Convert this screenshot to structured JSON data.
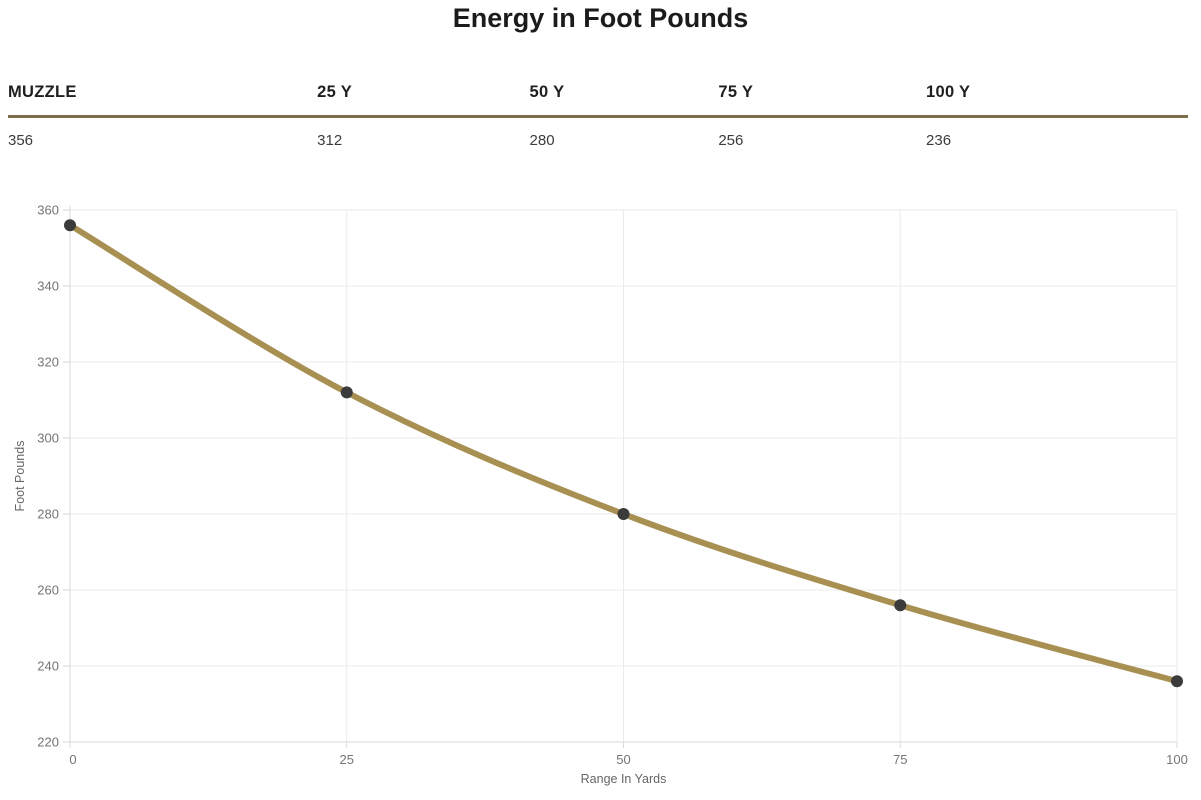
{
  "page": {
    "title": "Energy in Foot Pounds"
  },
  "table": {
    "headers": [
      "MUZZLE",
      "25 Y",
      "50 Y",
      "75 Y",
      "100 Y"
    ],
    "values": [
      "356",
      "312",
      "280",
      "256",
      "236"
    ]
  },
  "chart_data": {
    "type": "line",
    "title": "Energy in Foot Pounds",
    "x": [
      0,
      25,
      50,
      75,
      100
    ],
    "series": [
      {
        "name": "Energy",
        "values": [
          356,
          312,
          280,
          256,
          236
        ]
      }
    ],
    "xlabel": "Range In Yards",
    "ylabel": "Foot Pounds",
    "xticks": [
      0,
      25,
      50,
      75,
      100
    ],
    "yticks": [
      220,
      240,
      260,
      280,
      300,
      320,
      340,
      360
    ],
    "xlim": [
      0,
      100
    ],
    "ylim": [
      220,
      360
    ],
    "grid": true,
    "legend": "none",
    "colors": {
      "line": "#a89052",
      "marker": "#3b3b3b",
      "grid": "#ebebeb",
      "axis": "#d8d8d8",
      "tick_text": "#757575",
      "axis_title": "#666666"
    }
  }
}
